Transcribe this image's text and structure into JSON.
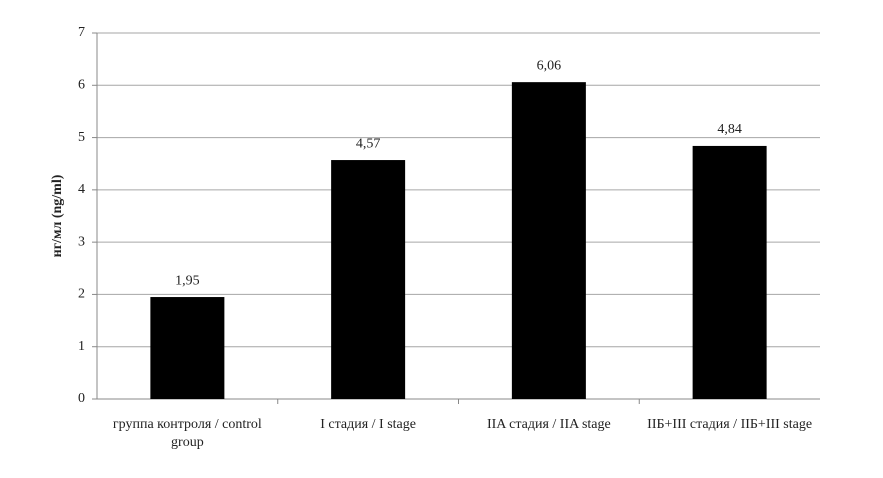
{
  "chart_data": {
    "type": "bar",
    "y_label": "нг/мл (ng/ml)",
    "categories": [
      "группа контроля / control group",
      "I стадия / I stage",
      "IIA стадия / IIA stage",
      "IIБ+III стадия / IIБ+III stage"
    ],
    "values": [
      1.95,
      4.57,
      6.06,
      4.84
    ],
    "value_labels": [
      "1,95",
      "4,57",
      "6,06",
      "4,84"
    ],
    "color": "#000000",
    "ylim": [
      0,
      7
    ],
    "yticks": [
      0,
      1,
      2,
      3,
      4,
      5,
      6,
      7
    ],
    "grid": true
  }
}
